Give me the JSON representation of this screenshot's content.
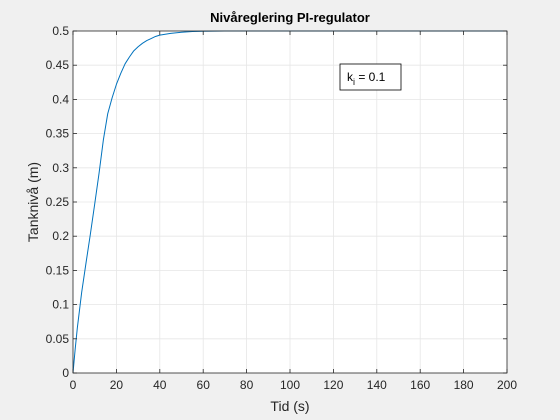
{
  "chart_data": {
    "type": "line",
    "title": "Nivåreglering PI-regulator",
    "xlabel": "Tid (s)",
    "ylabel": "Tanknivå (m)",
    "xlim": [
      0,
      200
    ],
    "ylim": [
      0,
      0.5
    ],
    "xticks": [
      0,
      20,
      40,
      60,
      80,
      100,
      120,
      140,
      160,
      180,
      200
    ],
    "yticks": [
      0,
      0.05,
      0.1,
      0.15,
      0.2,
      0.25,
      0.3,
      0.35,
      0.4,
      0.45,
      0.5
    ],
    "xtick_labels": [
      "0",
      "20",
      "40",
      "60",
      "80",
      "100",
      "120",
      "140",
      "160",
      "180",
      "200"
    ],
    "ytick_labels": [
      "0",
      "0.05",
      "0.1",
      "0.15",
      "0.2",
      "0.25",
      "0.3",
      "0.35",
      "0.4",
      "0.45",
      "0.5"
    ],
    "grid": true,
    "annotation": {
      "k": "k",
      "sub": "i",
      "rest": " = 0.1"
    },
    "series": [
      {
        "color": "#0072bd",
        "x": [
          0,
          1,
          2,
          4,
          6,
          8,
          10,
          12,
          14,
          16,
          18,
          20,
          22,
          24,
          26,
          28,
          30,
          32,
          34,
          36,
          38,
          40,
          45,
          50,
          55,
          60,
          65,
          70,
          80,
          90,
          100,
          120,
          140,
          160,
          180,
          200
        ],
        "y": [
          0,
          0.0348,
          0.066,
          0.118,
          0.161,
          0.203,
          0.247,
          0.292,
          0.341,
          0.379,
          0.402,
          0.422,
          0.438,
          0.452,
          0.462,
          0.471,
          0.477,
          0.482,
          0.486,
          0.489,
          0.492,
          0.494,
          0.4965,
          0.4982,
          0.4992,
          0.4996,
          0.4998,
          0.5,
          0.5,
          0.5,
          0.5,
          0.5,
          0.5,
          0.5,
          0.5,
          0.5
        ]
      }
    ]
  }
}
